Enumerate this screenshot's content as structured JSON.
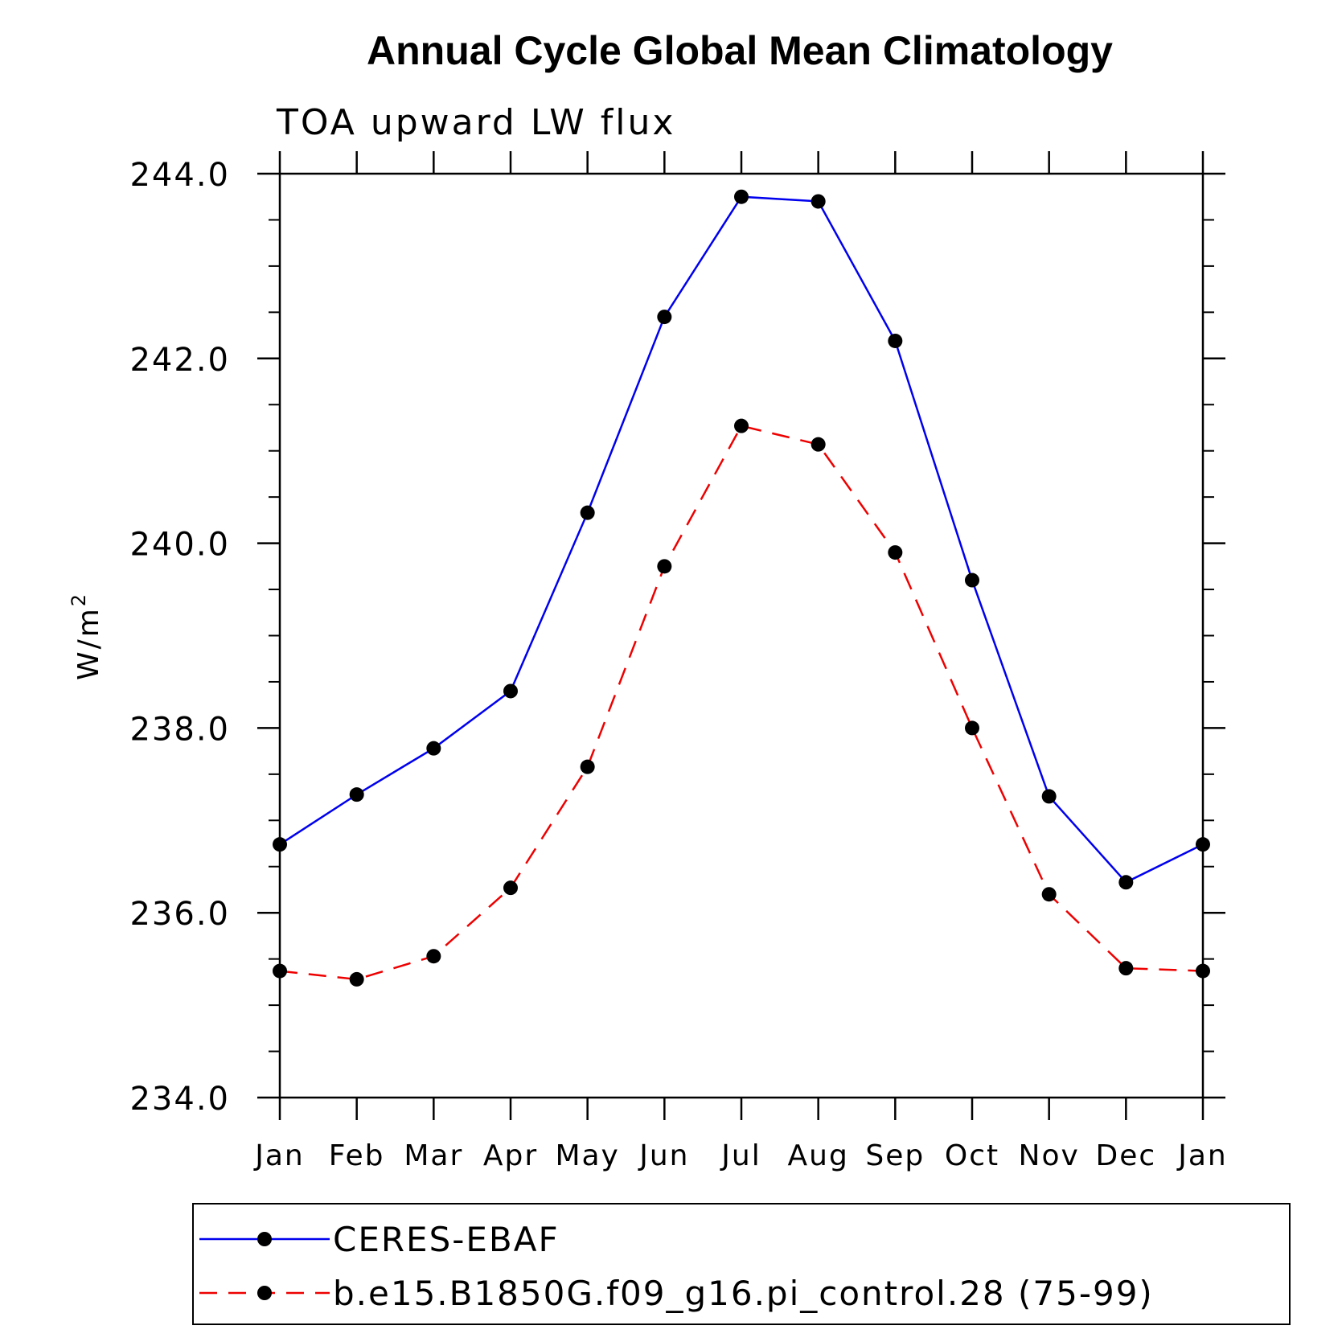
{
  "chart_data": {
    "type": "line",
    "title": "Annual Cycle Global Mean Climatology",
    "subtitle": "TOA upward LW flux",
    "ylabel": "W/m",
    "ylabel_sup": "2",
    "xlabel": "",
    "categories": [
      "Jan",
      "Feb",
      "Mar",
      "Apr",
      "May",
      "Jun",
      "Jul",
      "Aug",
      "Sep",
      "Oct",
      "Nov",
      "Dec",
      "Jan"
    ],
    "ylim": [
      234.0,
      244.0
    ],
    "yticks": [
      234.0,
      236.0,
      238.0,
      240.0,
      242.0,
      244.0
    ],
    "ytick_labels": [
      "234.0",
      "236.0",
      "238.0",
      "240.0",
      "242.0",
      "244.0"
    ],
    "y_minor_step": 0.5,
    "grid": false,
    "legend_placement": "bottom",
    "series": [
      {
        "name": "CERES-EBAF",
        "color": "#0000ee",
        "style": "solid",
        "marker": "filled-circle",
        "values": [
          236.74,
          237.28,
          237.78,
          238.4,
          240.33,
          242.45,
          243.75,
          243.7,
          242.19,
          239.6,
          237.26,
          236.33,
          236.74
        ]
      },
      {
        "name": "b.e15.B1850G.f09_g16.pi_control.28 (75-99)",
        "color": "#ee0000",
        "style": "dashed",
        "marker": "filled-circle",
        "values": [
          235.37,
          235.28,
          235.53,
          236.27,
          237.58,
          239.75,
          241.27,
          241.07,
          239.9,
          238.0,
          236.2,
          235.4,
          235.37
        ]
      }
    ]
  }
}
